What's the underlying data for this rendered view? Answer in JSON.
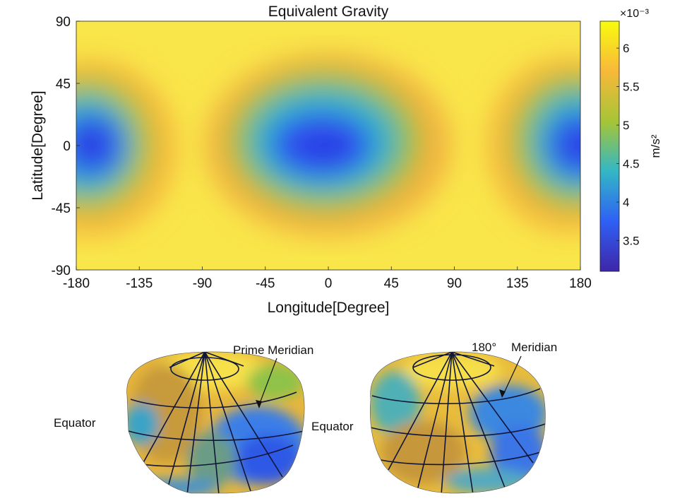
{
  "chart_data": [
    {
      "type": "heatmap",
      "title": "Equivalent Gravity",
      "xlabel": "Longitude[Degree]",
      "ylabel": "Latitude[Degree]",
      "xlim": [
        -180,
        180
      ],
      "ylim": [
        -90,
        90
      ],
      "xticks": [
        "-180",
        "-135",
        "-90",
        "-45",
        "0",
        "45",
        "90",
        "135",
        "180"
      ],
      "yticks": [
        "90",
        "45",
        "0",
        "-45",
        "-90"
      ],
      "colorbar": {
        "label": "m/s²",
        "exponent": "×10⁻³",
        "ticks": [
          "6",
          "5.5",
          "5",
          "4.5",
          "4",
          "3.5"
        ],
        "range": [
          3.1,
          6.35
        ],
        "colormap": [
          "#3e26a8",
          "#2f60f5",
          "#33b7c5",
          "#a6c536",
          "#f8b83a",
          "#f9fb0e"
        ]
      },
      "blue_lows_lonlat": [
        [
          -160,
          5
        ],
        [
          0,
          5
        ],
        [
          180,
          5
        ]
      ],
      "grid": false
    },
    {
      "type": "other",
      "annotations": [
        {
          "view": "left",
          "labels": [
            "Prime Meridian",
            "Equator"
          ]
        },
        {
          "view": "right",
          "labels": [
            "180°",
            "Meridian",
            "Equator"
          ]
        }
      ]
    }
  ]
}
